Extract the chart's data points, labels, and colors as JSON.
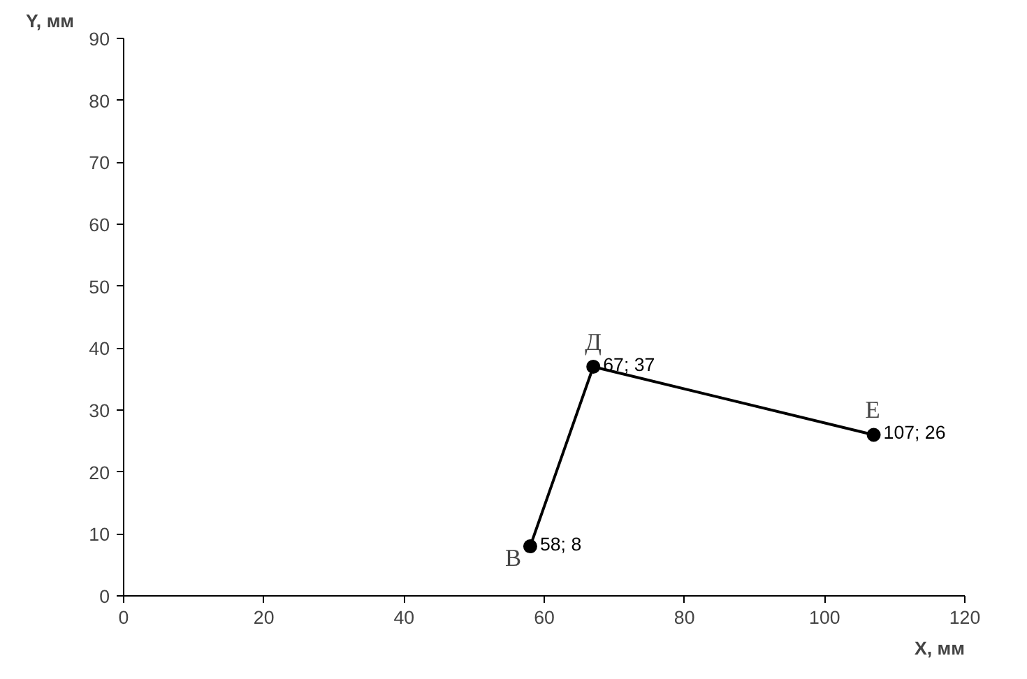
{
  "chart_data": {
    "type": "line",
    "xlabel": "X, мм",
    "ylabel": "Y, мм",
    "x": [
      58,
      67,
      107
    ],
    "series": [
      {
        "color": "#000000",
        "values": [
          8,
          37,
          26
        ],
        "value_labels": [
          "58; 8",
          "67; 37",
          "107; 26"
        ]
      }
    ],
    "marker": "circle",
    "annotations": [
      {
        "text": "В",
        "x": 58,
        "y": 8
      },
      {
        "text": "Д",
        "x": 67,
        "y": 37
      },
      {
        "text": "Е",
        "x": 107,
        "y": 26
      }
    ],
    "xlim": [
      0,
      120
    ],
    "xticks": [
      0,
      20,
      40,
      60,
      80,
      100,
      120
    ],
    "ylim": [
      0,
      90
    ],
    "yticks": [
      0,
      10,
      20,
      30,
      40,
      50,
      60,
      70,
      80,
      90
    ],
    "grid": false
  }
}
